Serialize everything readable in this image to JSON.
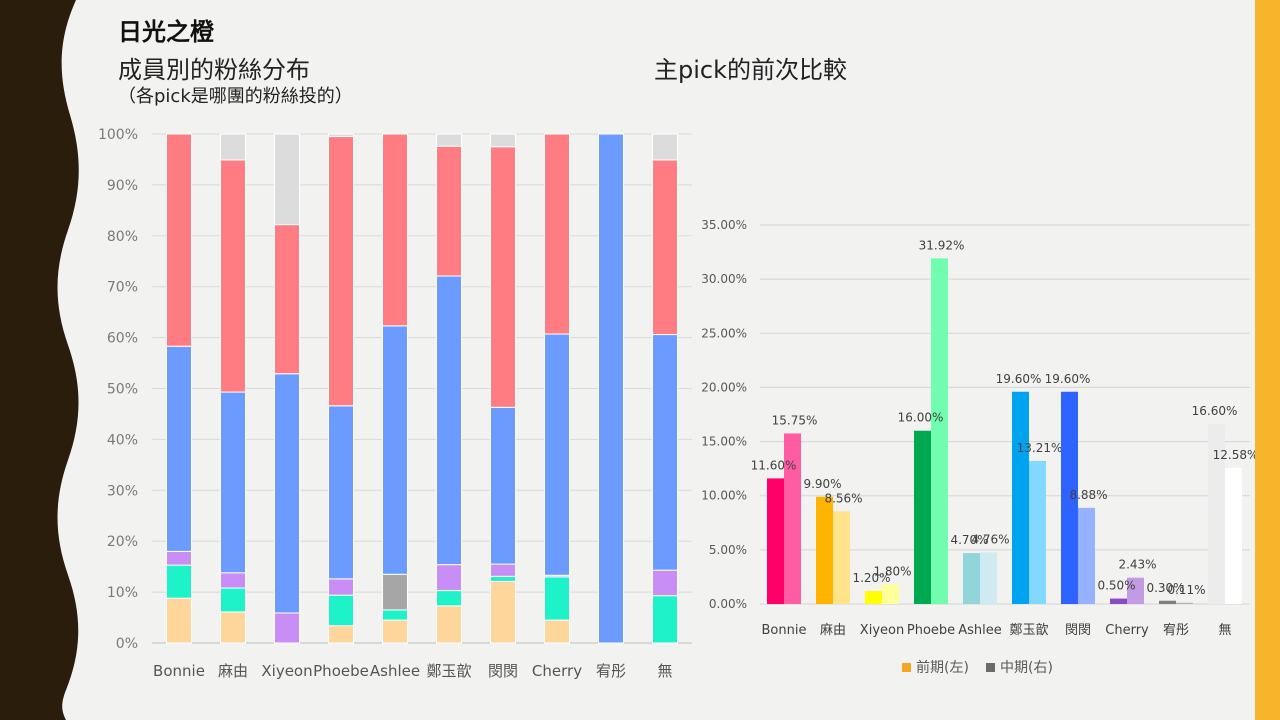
{
  "header": {
    "title": "日光之橙",
    "left_subtitle": "成員別的粉絲分布",
    "left_note": "（各pick是哪團的粉絲投的）",
    "right_subtitle": "主pick的前次比較"
  },
  "colors": {
    "background": "#f2f2f1",
    "left_decoration": "#2b1d0c",
    "right_stripe": "#f8b42a"
  },
  "chart_data": [
    {
      "type": "bar",
      "stacked": true,
      "percent": true,
      "categories": [
        "Bonnie",
        "麻由",
        "Xiyeon",
        "Phoebe",
        "Ashlee",
        "鄭玉歆",
        "閔閔",
        "Cherry",
        "宥彤",
        "無"
      ],
      "ylim": [
        0,
        100
      ],
      "yticks": [
        "0%",
        "10%",
        "20%",
        "30%",
        "40%",
        "50%",
        "60%",
        "70%",
        "80%",
        "90%",
        "100%"
      ],
      "grid": true,
      "legend": "none",
      "series": [
        {
          "color": "#fed59b",
          "values": [
            8.8,
            6.1,
            0,
            3.4,
            4.5,
            7.3,
            12.1,
            4.5,
            0,
            0
          ]
        },
        {
          "color": "#1df2c8",
          "values": [
            6.5,
            4.7,
            0,
            6.0,
            2.0,
            3.0,
            1.0,
            8.5,
            0,
            9.3
          ]
        },
        {
          "color": "#c98ef5",
          "values": [
            2.7,
            3.0,
            5.9,
            3.2,
            0,
            5.1,
            2.4,
            0.3,
            0,
            5.0
          ]
        },
        {
          "color": "#a6a6a6",
          "values": [
            0,
            0,
            0,
            0,
            7.0,
            0,
            0,
            0,
            0,
            0
          ]
        },
        {
          "color": "#6b9bff",
          "values": [
            40.3,
            35.5,
            47.0,
            34.0,
            48.8,
            56.7,
            30.8,
            47.4,
            100,
            46.3
          ]
        },
        {
          "color": "#ff7d82",
          "values": [
            41.7,
            45.6,
            29.3,
            52.9,
            37.7,
            25.5,
            51.2,
            39.3,
            0,
            34.3
          ]
        },
        {
          "color": "#dcdcdc",
          "values": [
            0,
            5.1,
            17.8,
            0.5,
            0,
            2.4,
            2.5,
            0,
            0,
            5.1
          ]
        }
      ]
    },
    {
      "type": "bar",
      "categories": [
        "Bonnie",
        "麻由",
        "Xiyeon",
        "Phoebe",
        "Ashlee",
        "鄭玉歆",
        "閔閔",
        "Cherry",
        "宥彤",
        "無"
      ],
      "ylim": [
        0,
        35
      ],
      "yticks": [
        "0.00%",
        "5.00%",
        "10.00%",
        "15.00%",
        "20.00%",
        "25.00%",
        "30.00%",
        "35.00%"
      ],
      "grid": true,
      "legend": "bottom",
      "series": [
        {
          "name": "前期(左)",
          "legend_color": "#f5a623",
          "values": [
            11.6,
            9.9,
            1.2,
            16.0,
            4.7,
            19.6,
            19.6,
            0.5,
            0.3,
            16.6
          ],
          "labels": [
            "11.60%",
            "9.90%",
            "1.20%",
            "16.00%",
            "4.70%",
            "19.60%",
            "19.60%",
            "0.50%",
            "0.30%",
            "16.60%"
          ],
          "colors": [
            "#ff0068",
            "#ffb400",
            "#ffff00",
            "#00a84f",
            "#91d4d9",
            "#00a3ef",
            "#2f63ff",
            "#8b49c9",
            "#7f7f7f",
            "#ececec"
          ]
        },
        {
          "name": "中期(右)",
          "legend_color": "#6b6b6b",
          "values": [
            15.75,
            8.56,
            1.8,
            31.92,
            4.76,
            13.21,
            8.88,
            2.43,
            0.11,
            12.58
          ],
          "labels": [
            "15.75%",
            "8.56%",
            "1.80%",
            "31.92%",
            "4.76%",
            "13.21%",
            "8.88%",
            "2.43%",
            "0.11%",
            "12.58%"
          ],
          "colors": [
            "#ff5ca4",
            "#ffe38b",
            "#ffff9a",
            "#72fcaf",
            "#cfeaf0",
            "#82d8ff",
            "#96b1ff",
            "#c39be3",
            "#b3b3b3",
            "#ffffff"
          ]
        }
      ]
    }
  ]
}
